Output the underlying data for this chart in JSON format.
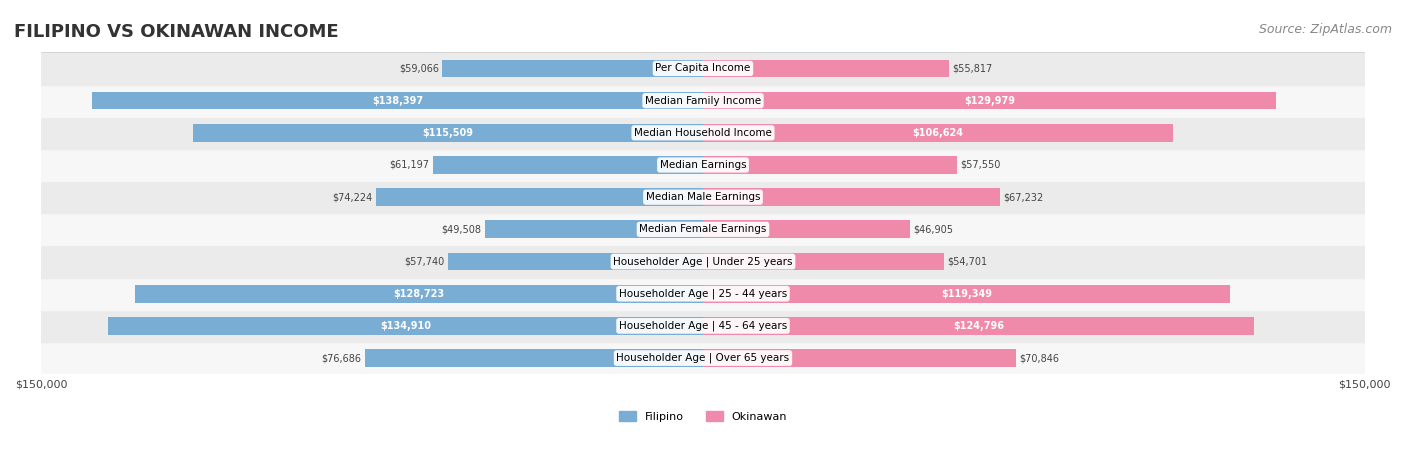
{
  "title": "FILIPINO VS OKINAWAN INCOME",
  "source": "Source: ZipAtlas.com",
  "max_value": 150000,
  "categories": [
    "Per Capita Income",
    "Median Family Income",
    "Median Household Income",
    "Median Earnings",
    "Median Male Earnings",
    "Median Female Earnings",
    "Householder Age | Under 25 years",
    "Householder Age | 25 - 44 years",
    "Householder Age | 45 - 64 years",
    "Householder Age | Over 65 years"
  ],
  "filipino_values": [
    59066,
    138397,
    115509,
    61197,
    74224,
    49508,
    57740,
    128723,
    134910,
    76686
  ],
  "okinawan_values": [
    55817,
    129979,
    106624,
    57550,
    67232,
    46905,
    54701,
    119349,
    124796,
    70846
  ],
  "filipino_labels": [
    "$59,066",
    "$138,397",
    "$115,509",
    "$61,197",
    "$74,224",
    "$49,508",
    "$57,740",
    "$128,723",
    "$134,910",
    "$76,686"
  ],
  "okinawan_labels": [
    "$55,817",
    "$129,979",
    "$106,624",
    "$57,550",
    "$67,232",
    "$46,905",
    "$54,701",
    "$119,349",
    "$124,796",
    "$70,846"
  ],
  "filipino_color": "#7aadd4",
  "okinawan_color": "#f08aaa",
  "filipino_color_dark": "#5b9dc7",
  "okinawan_color_dark": "#e8709a",
  "bar_bg": "#f0f0f0",
  "row_bg_odd": "#f7f7f7",
  "row_bg_even": "#ebebeb",
  "label_threshold": 100000,
  "title_fontsize": 13,
  "source_fontsize": 9,
  "bar_height": 0.55,
  "background_color": "#ffffff"
}
